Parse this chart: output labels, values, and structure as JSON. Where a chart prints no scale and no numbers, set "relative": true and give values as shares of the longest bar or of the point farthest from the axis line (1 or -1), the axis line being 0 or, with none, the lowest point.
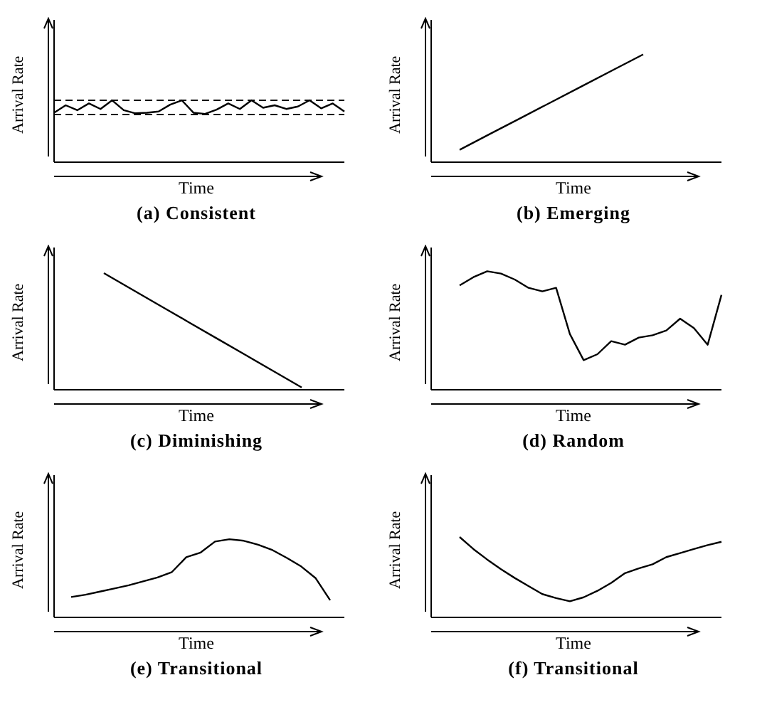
{
  "chart_data": [
    {
      "type": "line",
      "title": "(a) Consistent",
      "color": "#000000",
      "xlabel": "Time",
      "ylabel": "Arrival Rate",
      "relative": true,
      "marker": "none",
      "categories": [
        null,
        null,
        null,
        null,
        null,
        null,
        null,
        null,
        null,
        null,
        null,
        null,
        null,
        null,
        null,
        null,
        null,
        null,
        null,
        null,
        null,
        null,
        null,
        null,
        null,
        null
      ],
      "values": [
        0.8,
        0.92,
        0.84,
        0.95,
        0.86,
        1.0,
        0.84,
        0.79,
        0.8,
        0.82,
        0.93,
        1.0,
        0.8,
        0.78,
        0.85,
        0.95,
        0.86,
        1.0,
        0.88,
        0.92,
        0.86,
        0.9,
        1.0,
        0.87,
        0.95,
        0.82
      ],
      "ref_lines": [
        {
          "axis": "y",
          "value": 1.0,
          "line_style": "dashed"
        },
        {
          "axis": "y",
          "value": 0.77,
          "line_style": "dashed"
        }
      ]
    },
    {
      "type": "line",
      "title": "(b) Emerging",
      "color": "#000000",
      "xlabel": "Time",
      "ylabel": "Arrival Rate",
      "relative": true,
      "marker": "none",
      "categories": [
        null,
        null,
        null,
        null,
        null,
        null,
        null
      ],
      "values": [
        0.115,
        0.263,
        0.41,
        0.558,
        0.705,
        0.853,
        1.0
      ]
    },
    {
      "type": "line",
      "title": "(c) Diminishing",
      "color": "#000000",
      "xlabel": "Time",
      "ylabel": "Arrival Rate",
      "relative": true,
      "marker": "none",
      "categories": [
        null,
        null,
        null,
        null,
        null,
        null,
        null,
        null
      ],
      "values": [
        1.0,
        0.86,
        0.72,
        0.58,
        0.44,
        0.3,
        0.16,
        0.02
      ]
    },
    {
      "type": "line",
      "title": "(d) Random",
      "color": "#000000",
      "xlabel": "Time",
      "ylabel": "Arrival Rate",
      "relative": true,
      "marker": "none",
      "categories": [
        null,
        null,
        null,
        null,
        null,
        null,
        null,
        null,
        null,
        null,
        null,
        null,
        null,
        null,
        null,
        null,
        null,
        null,
        null,
        null
      ],
      "values": [
        0.88,
        0.95,
        1.0,
        0.98,
        0.93,
        0.86,
        0.83,
        0.86,
        0.47,
        0.25,
        0.3,
        0.41,
        0.38,
        0.44,
        0.46,
        0.5,
        0.6,
        0.52,
        0.38,
        0.8
      ]
    },
    {
      "type": "line",
      "title": "(e) Transitional",
      "color": "#000000",
      "xlabel": "Time",
      "ylabel": "Arrival Rate",
      "relative": true,
      "marker": "none",
      "categories": [
        null,
        null,
        null,
        null,
        null,
        null,
        null,
        null,
        null,
        null,
        null,
        null,
        null,
        null,
        null,
        null,
        null,
        null,
        null
      ],
      "values": [
        0.26,
        0.29,
        0.33,
        0.37,
        0.41,
        0.46,
        0.51,
        0.58,
        0.77,
        0.83,
        0.97,
        1.0,
        0.98,
        0.93,
        0.86,
        0.76,
        0.65,
        0.5,
        0.22
      ]
    },
    {
      "type": "line",
      "title": "(f) Transitional",
      "color": "#000000",
      "xlabel": "Time",
      "ylabel": "Arrival Rate",
      "relative": true,
      "marker": "none",
      "categories": [
        null,
        null,
        null,
        null,
        null,
        null,
        null,
        null,
        null,
        null,
        null,
        null,
        null,
        null,
        null,
        null,
        null,
        null,
        null,
        null
      ],
      "values": [
        1.0,
        0.85,
        0.72,
        0.6,
        0.49,
        0.39,
        0.29,
        0.24,
        0.2,
        0.25,
        0.33,
        0.43,
        0.55,
        0.61,
        0.66,
        0.75,
        0.8,
        0.85,
        0.9,
        0.94
      ]
    }
  ]
}
